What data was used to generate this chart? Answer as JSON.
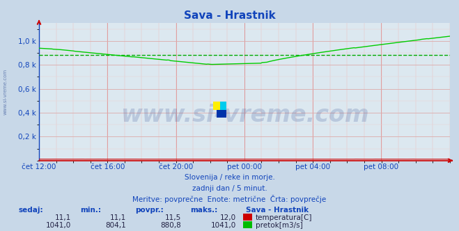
{
  "title": "Sava - Hrastnik",
  "title_color": "#1144bb",
  "background_color": "#c8d8e8",
  "plot_bg_color": "#dce8f0",
  "grid_color_major_x": "#dd8888",
  "grid_color_major_y": "#ddaaaa",
  "grid_color_minor_x": "#eebbbb",
  "grid_color_minor_y": "#eecccc",
  "x_labels": [
    "čet 12:00",
    "čet 16:00",
    "čet 20:00",
    "pet 00:00",
    "pet 04:00",
    "pet 08:00"
  ],
  "x_ticks_norm": [
    0.0,
    0.1667,
    0.3333,
    0.5,
    0.6667,
    0.8333
  ],
  "y_min": 0,
  "y_max": 1150,
  "pretok_color": "#00cc00",
  "temperatura_color": "#cc0000",
  "avg_line_color": "#00aa00",
  "avg_value": 880.8,
  "watermark": "www.si-vreme.com",
  "watermark_color": "#1a3a88",
  "watermark_alpha": 0.18,
  "footer_line1": "Slovenija / reke in morje.",
  "footer_line2": "zadnji dan / 5 minut.",
  "footer_line3": "Meritve: povprečne  Enote: metrične  Črta: povprečje",
  "footer_color": "#1144bb",
  "table_headers": [
    "sedaj:",
    "min.:",
    "povpr.:",
    "maks.:"
  ],
  "table_header_color": "#1144bb",
  "temperatura_row": [
    "11,1",
    "11,1",
    "11,5",
    "12,0"
  ],
  "pretok_row": [
    "1041,0",
    "804,1",
    "880,8",
    "1041,0"
  ],
  "station_label": "Sava - Hrastnik",
  "temp_label": "temperatura[C]",
  "pretok_label": "pretok[m3/s]",
  "sidewater_label": "www.si-vreme.com",
  "sidewater_color": "#1a3a88",
  "axis_color": "#cc0000",
  "left_axis_color": "#1144bb"
}
